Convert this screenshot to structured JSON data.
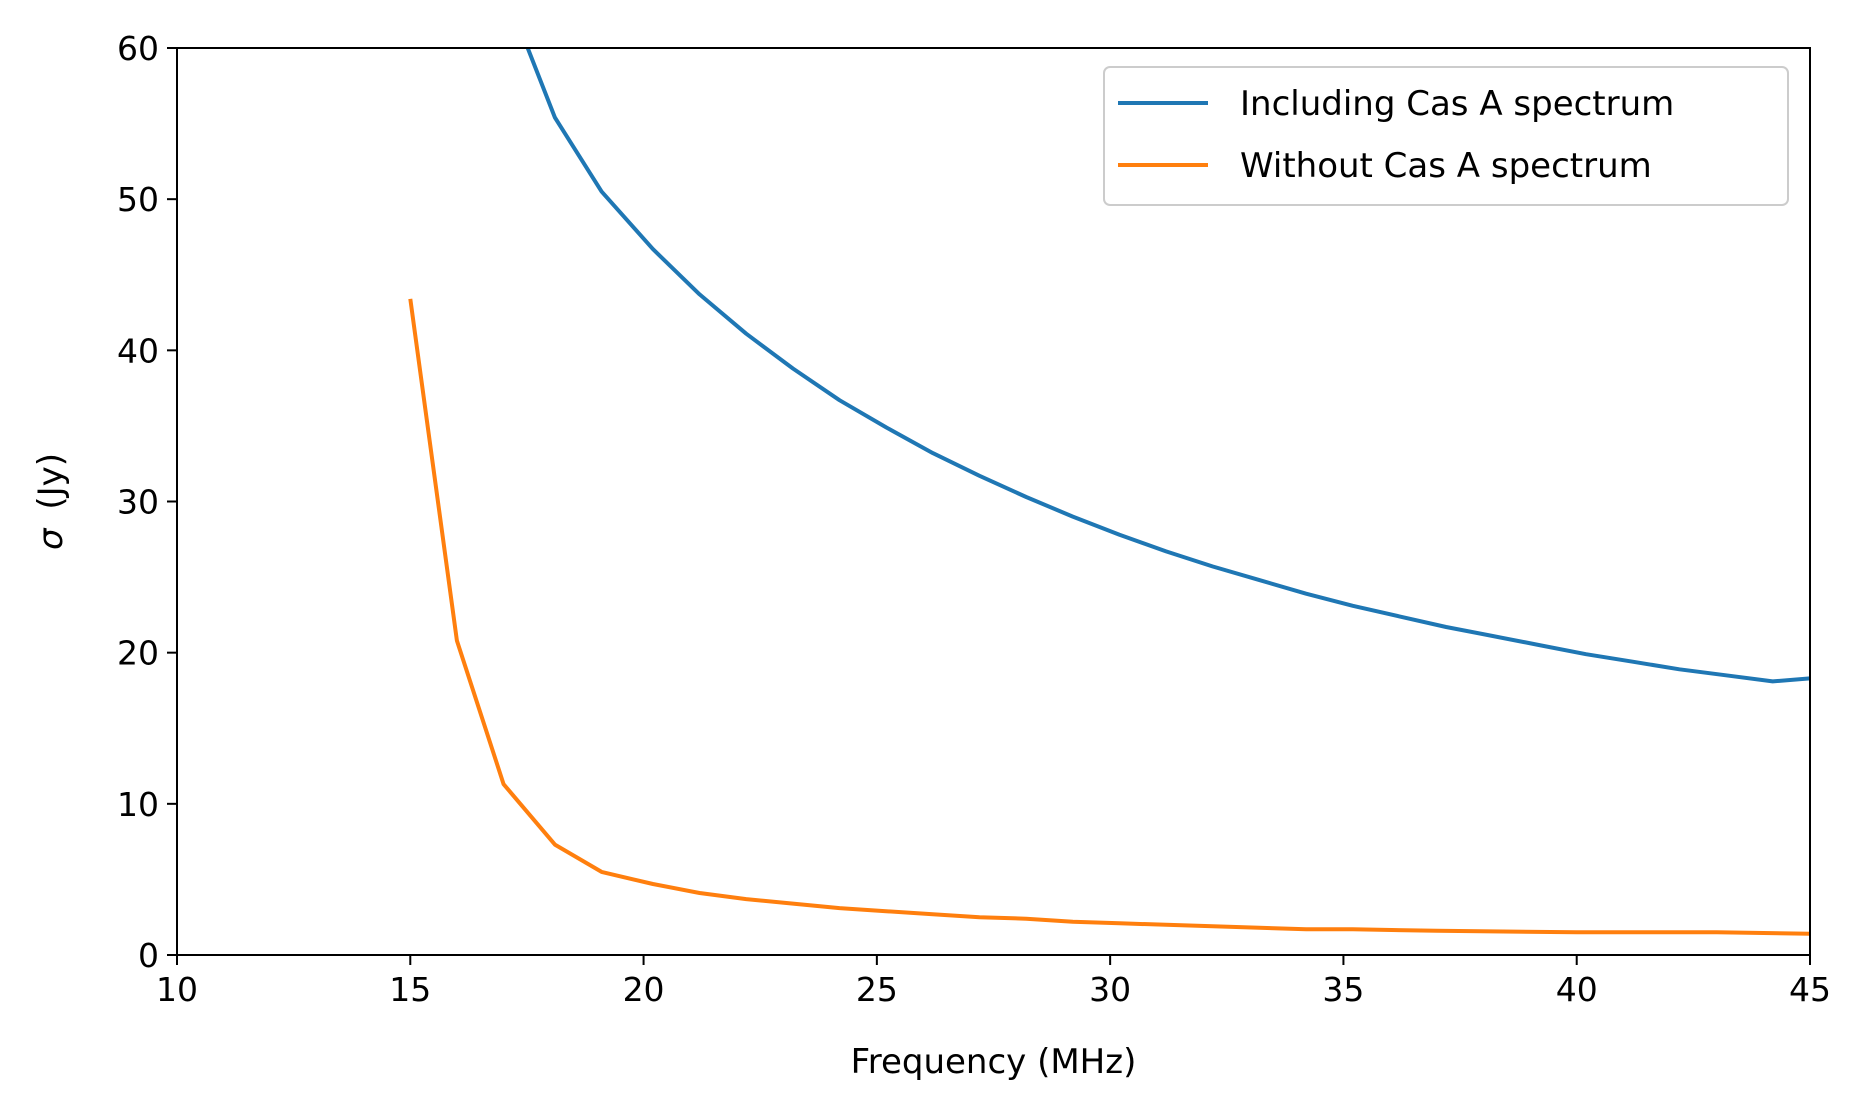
{
  "chart_data": {
    "type": "line",
    "title": "",
    "xlabel": "Frequency (MHz)",
    "ylabel_symbol": "σ",
    "ylabel_unit": "(Jy)",
    "xlim": [
      10,
      45
    ],
    "ylim": [
      0,
      60
    ],
    "xticks": [
      10,
      15,
      20,
      25,
      30,
      35,
      40,
      45
    ],
    "yticks": [
      0,
      10,
      20,
      30,
      40,
      50,
      60
    ],
    "grid": false,
    "legend_position": "top-right",
    "series": [
      {
        "name": "Including Cas A spectrum",
        "color": "#1f77b4",
        "x": [
          17.2,
          18.1,
          19.1,
          20.2,
          21.2,
          22.2,
          23.2,
          24.2,
          25.2,
          26.2,
          27.2,
          28.2,
          29.2,
          30.2,
          31.2,
          32.2,
          33.2,
          34.2,
          35.2,
          36.2,
          37.2,
          38.2,
          39.2,
          40.2,
          41.2,
          42.2,
          43.2,
          44.2,
          45.0
        ],
        "y": [
          62.5,
          55.4,
          50.5,
          46.7,
          43.7,
          41.1,
          38.8,
          36.7,
          34.9,
          33.2,
          31.7,
          30.3,
          29.0,
          27.8,
          26.7,
          25.7,
          24.8,
          23.9,
          23.1,
          22.4,
          21.7,
          21.1,
          20.5,
          19.9,
          19.4,
          18.9,
          18.5,
          18.1,
          18.3
        ]
      },
      {
        "name": "Without Cas A spectrum",
        "color": "#ff7f0e",
        "x": [
          15.0,
          16.0,
          17.0,
          18.1,
          19.1,
          20.2,
          21.2,
          22.2,
          23.2,
          24.2,
          25.2,
          26.2,
          27.2,
          28.2,
          29.2,
          30.2,
          31.2,
          32.2,
          33.2,
          34.2,
          35.2,
          37.0,
          40.0,
          43.0,
          45.0
        ],
        "y": [
          43.4,
          20.8,
          11.3,
          7.3,
          5.5,
          4.7,
          4.1,
          3.7,
          3.4,
          3.1,
          2.9,
          2.7,
          2.5,
          2.4,
          2.2,
          2.1,
          2.0,
          1.9,
          1.8,
          1.7,
          1.7,
          1.6,
          1.5,
          1.5,
          1.4
        ]
      }
    ]
  }
}
